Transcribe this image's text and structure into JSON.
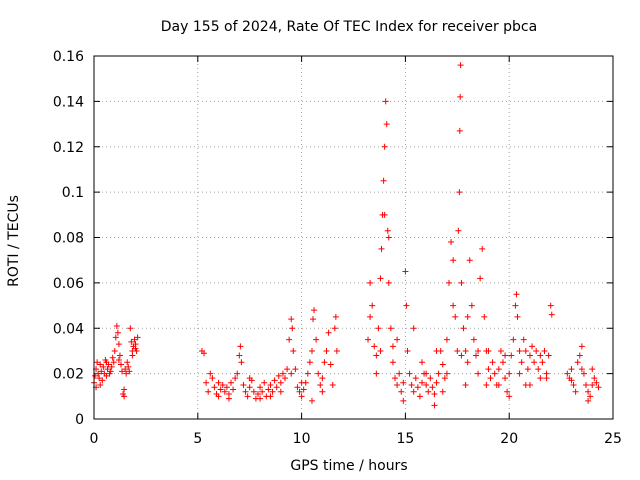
{
  "chart_data": {
    "type": "scatter",
    "title": "Day 155 of 2024, Rate Of TEC Index for receiver pbca",
    "xlabel": "GPS time / hours",
    "ylabel": "ROTI / TECUs",
    "xlim": [
      0,
      25
    ],
    "ylim": [
      0,
      0.16
    ],
    "x_ticks": [
      "0",
      "5",
      "10",
      "15",
      "20",
      "25"
    ],
    "y_ticks": [
      "0",
      "0.02",
      "0.04",
      "0.06",
      "0.08",
      "0.1",
      "0.12",
      "0.14",
      "0.16"
    ],
    "x_tick_values": [
      0,
      5,
      10,
      15,
      20,
      25
    ],
    "y_tick_values": [
      0,
      0.02,
      0.04,
      0.06,
      0.08,
      0.1,
      0.12,
      0.14,
      0.16
    ],
    "grid": true,
    "marker": "+",
    "color": "#ff0000",
    "series": [
      {
        "points": [
          [
            0.0,
            0.016
          ],
          [
            0.05,
            0.019
          ],
          [
            0.1,
            0.022
          ],
          [
            0.15,
            0.025
          ],
          [
            0.2,
            0.02
          ],
          [
            0.25,
            0.018
          ],
          [
            0.3,
            0.024
          ],
          [
            0.35,
            0.021
          ],
          [
            0.4,
            0.017
          ],
          [
            0.45,
            0.023
          ],
          [
            0.5,
            0.02
          ],
          [
            0.55,
            0.026
          ],
          [
            0.6,
            0.019
          ],
          [
            0.65,
            0.022
          ],
          [
            0.7,
            0.024
          ],
          [
            0.75,
            0.02
          ],
          [
            0.8,
            0.021
          ],
          [
            0.85,
            0.023
          ],
          [
            0.9,
            0.027
          ],
          [
            0.95,
            0.025
          ],
          [
            1.0,
            0.03
          ],
          [
            1.05,
            0.036
          ],
          [
            1.1,
            0.041
          ],
          [
            1.15,
            0.038
          ],
          [
            1.2,
            0.033
          ],
          [
            1.25,
            0.028
          ],
          [
            1.3,
            0.024
          ],
          [
            1.35,
            0.021
          ],
          [
            1.4,
            0.011
          ],
          [
            1.45,
            0.013
          ],
          [
            1.5,
            0.022
          ],
          [
            1.55,
            0.02
          ],
          [
            1.6,
            0.025
          ],
          [
            1.65,
            0.023
          ],
          [
            1.7,
            0.021
          ],
          [
            1.75,
            0.04
          ],
          [
            1.8,
            0.034
          ],
          [
            1.85,
            0.03
          ],
          [
            1.9,
            0.032
          ],
          [
            1.95,
            0.035
          ],
          [
            2.0,
            0.033
          ],
          [
            2.05,
            0.03
          ],
          [
            2.1,
            0.036
          ],
          [
            0.1,
            0.014
          ],
          [
            0.3,
            0.015
          ],
          [
            1.2,
            0.026
          ],
          [
            1.45,
            0.01
          ],
          [
            1.85,
            0.028
          ],
          [
            2.0,
            0.031
          ],
          [
            0.6,
            0.025
          ],
          [
            5.2,
            0.03
          ],
          [
            5.3,
            0.029
          ],
          [
            5.4,
            0.016
          ],
          [
            5.5,
            0.012
          ],
          [
            5.6,
            0.02
          ],
          [
            5.7,
            0.018
          ],
          [
            5.8,
            0.014
          ],
          [
            5.9,
            0.011
          ],
          [
            6.0,
            0.01
          ],
          [
            6.1,
            0.013
          ],
          [
            6.2,
            0.015
          ],
          [
            6.3,
            0.012
          ],
          [
            6.4,
            0.014
          ],
          [
            6.5,
            0.011
          ],
          [
            6.6,
            0.016
          ],
          [
            6.7,
            0.013
          ],
          [
            6.8,
            0.018
          ],
          [
            6.9,
            0.02
          ],
          [
            7.0,
            0.028
          ],
          [
            7.05,
            0.032
          ],
          [
            7.1,
            0.025
          ],
          [
            7.2,
            0.015
          ],
          [
            7.3,
            0.012
          ],
          [
            7.4,
            0.01
          ],
          [
            7.5,
            0.014
          ],
          [
            7.6,
            0.017
          ],
          [
            7.7,
            0.012
          ],
          [
            7.8,
            0.009
          ],
          [
            7.9,
            0.011
          ],
          [
            8.0,
            0.014
          ],
          [
            8.1,
            0.012
          ],
          [
            8.2,
            0.016
          ],
          [
            8.3,
            0.01
          ],
          [
            8.4,
            0.013
          ],
          [
            8.5,
            0.015
          ],
          [
            8.6,
            0.012
          ],
          [
            8.7,
            0.017
          ],
          [
            8.8,
            0.014
          ],
          [
            8.9,
            0.019
          ],
          [
            9.0,
            0.016
          ],
          [
            9.1,
            0.02
          ],
          [
            9.2,
            0.018
          ],
          [
            9.3,
            0.022
          ],
          [
            9.4,
            0.035
          ],
          [
            9.5,
            0.044
          ],
          [
            9.55,
            0.04
          ],
          [
            9.6,
            0.03
          ],
          [
            9.7,
            0.022
          ],
          [
            9.8,
            0.014
          ],
          [
            9.9,
            0.012
          ],
          [
            10.0,
            0.01
          ],
          [
            10.1,
            0.013
          ],
          [
            10.2,
            0.016
          ],
          [
            10.3,
            0.02
          ],
          [
            10.4,
            0.025
          ],
          [
            10.5,
            0.03
          ],
          [
            10.55,
            0.044
          ],
          [
            10.6,
            0.048
          ],
          [
            10.7,
            0.035
          ],
          [
            10.8,
            0.02
          ],
          [
            10.9,
            0.015
          ],
          [
            11.0,
            0.018
          ],
          [
            11.1,
            0.025
          ],
          [
            11.2,
            0.03
          ],
          [
            11.3,
            0.038
          ],
          [
            11.4,
            0.024
          ],
          [
            11.5,
            0.015
          ],
          [
            11.6,
            0.04
          ],
          [
            11.65,
            0.045
          ],
          [
            11.7,
            0.03
          ],
          [
            6.0,
            0.016
          ],
          [
            6.5,
            0.009
          ],
          [
            7.5,
            0.018
          ],
          [
            8.0,
            0.009
          ],
          [
            8.5,
            0.01
          ],
          [
            9.0,
            0.012
          ],
          [
            9.5,
            0.02
          ],
          [
            10.0,
            0.016
          ],
          [
            10.5,
            0.008
          ],
          [
            11.0,
            0.012
          ],
          [
            13.2,
            0.035
          ],
          [
            13.3,
            0.06
          ],
          [
            13.4,
            0.05
          ],
          [
            13.5,
            0.032
          ],
          [
            13.6,
            0.028
          ],
          [
            13.7,
            0.04
          ],
          [
            13.8,
            0.062
          ],
          [
            13.85,
            0.075
          ],
          [
            13.9,
            0.09
          ],
          [
            13.95,
            0.105
          ],
          [
            14.0,
            0.12
          ],
          [
            14.05,
            0.14
          ],
          [
            14.1,
            0.13
          ],
          [
            14.15,
            0.083
          ],
          [
            14.2,
            0.06
          ],
          [
            14.3,
            0.04
          ],
          [
            14.4,
            0.025
          ],
          [
            14.5,
            0.018
          ],
          [
            14.6,
            0.015
          ],
          [
            14.7,
            0.02
          ],
          [
            14.8,
            0.012
          ],
          [
            14.9,
            0.016
          ],
          [
            15.0,
            0.065
          ],
          [
            15.05,
            0.05
          ],
          [
            15.1,
            0.03
          ],
          [
            15.2,
            0.02
          ],
          [
            15.3,
            0.015
          ],
          [
            15.4,
            0.012
          ],
          [
            15.5,
            0.018
          ],
          [
            15.6,
            0.014
          ],
          [
            15.7,
            0.01
          ],
          [
            15.8,
            0.016
          ],
          [
            15.9,
            0.02
          ],
          [
            16.0,
            0.015
          ],
          [
            16.1,
            0.012
          ],
          [
            16.2,
            0.018
          ],
          [
            16.3,
            0.014
          ],
          [
            16.4,
            0.011
          ],
          [
            16.5,
            0.016
          ],
          [
            16.6,
            0.02
          ],
          [
            16.7,
            0.03
          ],
          [
            16.8,
            0.024
          ],
          [
            16.9,
            0.018
          ],
          [
            17.0,
            0.035
          ],
          [
            17.1,
            0.06
          ],
          [
            17.2,
            0.078
          ],
          [
            17.3,
            0.07
          ],
          [
            17.4,
            0.045
          ],
          [
            17.5,
            0.03
          ],
          [
            17.55,
            0.083
          ],
          [
            17.6,
            0.1
          ],
          [
            17.62,
            0.127
          ],
          [
            17.64,
            0.142
          ],
          [
            17.66,
            0.156
          ],
          [
            17.7,
            0.06
          ],
          [
            17.8,
            0.04
          ],
          [
            17.9,
            0.03
          ],
          [
            18.0,
            0.025
          ],
          [
            18.1,
            0.07
          ],
          [
            18.2,
            0.05
          ],
          [
            18.3,
            0.035
          ],
          [
            18.4,
            0.028
          ],
          [
            18.5,
            0.02
          ],
          [
            18.6,
            0.062
          ],
          [
            18.7,
            0.075
          ],
          [
            18.8,
            0.045
          ],
          [
            18.9,
            0.03
          ],
          [
            19.0,
            0.022
          ],
          [
            19.1,
            0.018
          ],
          [
            19.2,
            0.025
          ],
          [
            19.3,
            0.02
          ],
          [
            19.4,
            0.015
          ],
          [
            19.5,
            0.022
          ],
          [
            19.6,
            0.03
          ],
          [
            19.7,
            0.025
          ],
          [
            19.8,
            0.018
          ],
          [
            19.9,
            0.012
          ],
          [
            20.0,
            0.02
          ],
          [
            20.1,
            0.028
          ],
          [
            20.2,
            0.035
          ],
          [
            20.3,
            0.05
          ],
          [
            20.35,
            0.055
          ],
          [
            20.4,
            0.045
          ],
          [
            20.5,
            0.03
          ],
          [
            20.6,
            0.025
          ],
          [
            20.7,
            0.035
          ],
          [
            20.8,
            0.03
          ],
          [
            20.9,
            0.022
          ],
          [
            21.0,
            0.028
          ],
          [
            21.1,
            0.032
          ],
          [
            21.2,
            0.025
          ],
          [
            21.3,
            0.03
          ],
          [
            21.4,
            0.022
          ],
          [
            21.5,
            0.018
          ],
          [
            21.6,
            0.025
          ],
          [
            21.7,
            0.03
          ],
          [
            21.8,
            0.02
          ],
          [
            21.9,
            0.028
          ],
          [
            22.0,
            0.05
          ],
          [
            22.05,
            0.046
          ],
          [
            13.3,
            0.045
          ],
          [
            13.6,
            0.02
          ],
          [
            14.0,
            0.09
          ],
          [
            14.2,
            0.08
          ],
          [
            14.6,
            0.035
          ],
          [
            15.4,
            0.04
          ],
          [
            16.0,
            0.02
          ],
          [
            16.5,
            0.03
          ],
          [
            17.0,
            0.02
          ],
          [
            17.3,
            0.05
          ],
          [
            17.7,
            0.028
          ],
          [
            18.0,
            0.045
          ],
          [
            18.5,
            0.03
          ],
          [
            19.0,
            0.03
          ],
          [
            19.5,
            0.015
          ],
          [
            20.0,
            0.01
          ],
          [
            20.5,
            0.02
          ],
          [
            21.0,
            0.015
          ],
          [
            21.5,
            0.028
          ],
          [
            13.8,
            0.03
          ],
          [
            14.4,
            0.032
          ],
          [
            14.9,
            0.008
          ],
          [
            15.8,
            0.025
          ],
          [
            16.8,
            0.012
          ],
          [
            17.9,
            0.015
          ],
          [
            18.9,
            0.015
          ],
          [
            19.8,
            0.028
          ],
          [
            20.8,
            0.015
          ],
          [
            21.8,
            0.018
          ],
          [
            16.4,
            0.006
          ],
          [
            22.8,
            0.02
          ],
          [
            22.9,
            0.018
          ],
          [
            23.0,
            0.022
          ],
          [
            23.1,
            0.015
          ],
          [
            23.2,
            0.012
          ],
          [
            23.3,
            0.025
          ],
          [
            23.4,
            0.028
          ],
          [
            23.5,
            0.032
          ],
          [
            23.6,
            0.02
          ],
          [
            23.7,
            0.015
          ],
          [
            23.8,
            0.012
          ],
          [
            23.9,
            0.01
          ],
          [
            24.0,
            0.015
          ],
          [
            24.1,
            0.018
          ],
          [
            24.2,
            0.016
          ],
          [
            24.3,
            0.014
          ],
          [
            23.5,
            0.022
          ],
          [
            23.0,
            0.017
          ],
          [
            23.8,
            0.008
          ],
          [
            24.0,
            0.022
          ]
        ]
      }
    ]
  }
}
